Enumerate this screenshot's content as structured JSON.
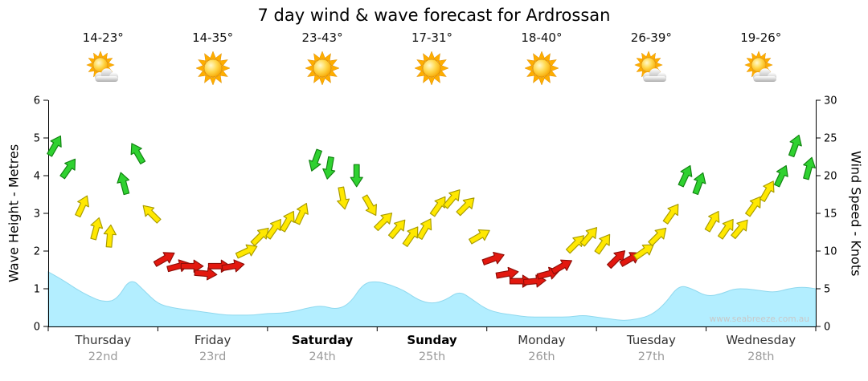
{
  "title": "7 day wind & wave forecast for Ardrossan",
  "watermark": "www.seabreeze.com.au",
  "axes": {
    "left_label": "Wave Height - Metres",
    "right_label": "Wind Speed - Knots",
    "left_ticks": [
      0,
      1,
      2,
      3,
      4,
      5,
      6
    ],
    "right_ticks": [
      0,
      5,
      10,
      15,
      20,
      25,
      30
    ],
    "left_range": [
      0,
      6
    ],
    "right_range": [
      0,
      30
    ]
  },
  "chart_data": {
    "type": "area",
    "title": "7 day wind & wave forecast for Ardrossan",
    "legend": "wind arrows colored by speed, wave height as shaded area",
    "days": [
      {
        "name": "Thursday",
        "date": "22nd",
        "temp": "14-23°",
        "icon": "partly-cloudy",
        "bold": false
      },
      {
        "name": "Friday",
        "date": "23rd",
        "temp": "14-35°",
        "icon": "sunny",
        "bold": false
      },
      {
        "name": "Saturday",
        "date": "24th",
        "temp": "23-43°",
        "icon": "sunny",
        "bold": true
      },
      {
        "name": "Sunday",
        "date": "25th",
        "temp": "17-31°",
        "icon": "sunny",
        "bold": true
      },
      {
        "name": "Monday",
        "date": "26th",
        "temp": "18-40°",
        "icon": "sunny",
        "bold": false
      },
      {
        "name": "Tuesday",
        "date": "27th",
        "temp": "26-39°",
        "icon": "partly-cloudy",
        "bold": false
      },
      {
        "name": "Wednesday",
        "date": "28th",
        "temp": "19-26°",
        "icon": "partly-cloudy",
        "bold": false
      }
    ],
    "wind": {
      "name": "Wind Speed",
      "unit": "knots",
      "axis": "right",
      "points_format": "[speed_knots, direction_deg_pointing_to]",
      "points": [
        [
          24,
          30
        ],
        [
          21,
          35
        ],
        [
          16,
          25
        ],
        [
          13,
          15
        ],
        [
          12,
          5
        ],
        [
          19,
          345
        ],
        [
          23,
          330
        ],
        [
          15,
          315
        ],
        [
          9,
          60
        ],
        [
          8,
          75
        ],
        [
          8,
          90
        ],
        [
          7,
          95
        ],
        [
          8,
          90
        ],
        [
          8,
          80
        ],
        [
          10,
          65
        ],
        [
          12,
          45
        ],
        [
          13,
          35
        ],
        [
          14,
          30
        ],
        [
          15,
          25
        ],
        [
          22,
          200
        ],
        [
          21,
          190
        ],
        [
          17,
          170
        ],
        [
          20,
          180
        ],
        [
          16,
          150
        ],
        [
          14,
          45
        ],
        [
          13,
          40
        ],
        [
          12,
          35
        ],
        [
          13,
          30
        ],
        [
          16,
          35
        ],
        [
          17,
          40
        ],
        [
          16,
          45
        ],
        [
          12,
          60
        ],
        [
          9,
          70
        ],
        [
          7,
          80
        ],
        [
          6,
          90
        ],
        [
          6,
          85
        ],
        [
          7,
          75
        ],
        [
          8,
          60
        ],
        [
          11,
          45
        ],
        [
          12,
          40
        ],
        [
          11,
          35
        ],
        [
          9,
          45
        ],
        [
          9,
          60
        ],
        [
          10,
          55
        ],
        [
          12,
          45
        ],
        [
          15,
          35
        ],
        [
          20,
          25
        ],
        [
          19,
          20
        ],
        [
          14,
          30
        ],
        [
          13,
          35
        ],
        [
          13,
          40
        ],
        [
          16,
          35
        ],
        [
          18,
          30
        ],
        [
          20,
          25
        ],
        [
          24,
          20
        ],
        [
          21,
          15
        ]
      ]
    },
    "wave": {
      "name": "Wave Height",
      "unit": "metres",
      "axis": "left",
      "values": [
        1.45,
        1.25,
        1.0,
        0.8,
        0.65,
        0.7,
        1.3,
        0.95,
        0.6,
        0.5,
        0.45,
        0.4,
        0.35,
        0.3,
        0.3,
        0.3,
        0.35,
        0.35,
        0.4,
        0.5,
        0.55,
        0.45,
        0.6,
        1.15,
        1.2,
        1.1,
        0.95,
        0.7,
        0.6,
        0.7,
        0.95,
        0.7,
        0.45,
        0.35,
        0.3,
        0.25,
        0.25,
        0.25,
        0.25,
        0.3,
        0.25,
        0.2,
        0.15,
        0.2,
        0.3,
        0.6,
        1.1,
        1.0,
        0.8,
        0.85,
        1.0,
        1.0,
        0.95,
        0.9,
        1.0,
        1.05,
        1.0
      ]
    },
    "colors": {
      "wind_light": "#E3180F",
      "wind_light_edge": "#8F0E08",
      "wind_moderate": "#FFE800",
      "wind_moderate_edge": "#A89B00",
      "wind_strong": "#2FD130",
      "wind_strong_edge": "#118211",
      "wave_fill": "#B3EEFF",
      "wave_edge": "#8FD8EE"
    },
    "wind_color_thresholds": {
      "light_below_knots": 10,
      "strong_from_knots": 19
    }
  }
}
